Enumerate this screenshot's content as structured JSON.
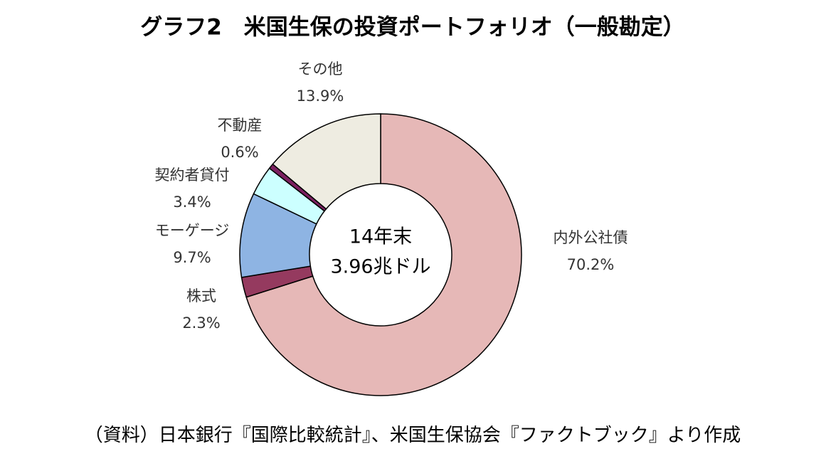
{
  "chart_data": {
    "type": "donut",
    "title": "グラフ2　米国生保の投資ポートフォリオ（一般勘定）",
    "center_label": [
      "14年末",
      "3.96兆ドル"
    ],
    "categories": [
      "内外公社債",
      "株式",
      "モーゲージ",
      "契約者貸付",
      "不動産",
      "その他"
    ],
    "values": [
      70.2,
      2.3,
      9.7,
      3.4,
      0.6,
      13.9
    ],
    "value_labels": [
      "70.2%",
      "2.3%",
      "9.7%",
      "3.4%",
      "0.6%",
      "13.9%"
    ],
    "colors": [
      "#e6b8b7",
      "#953a5f",
      "#8eb4e3",
      "#ccffff",
      "#7b2060",
      "#eeece1"
    ],
    "source": "（資料）日本銀行『国際比較統計』、米国生保協会『ファクトブック』より作成"
  }
}
